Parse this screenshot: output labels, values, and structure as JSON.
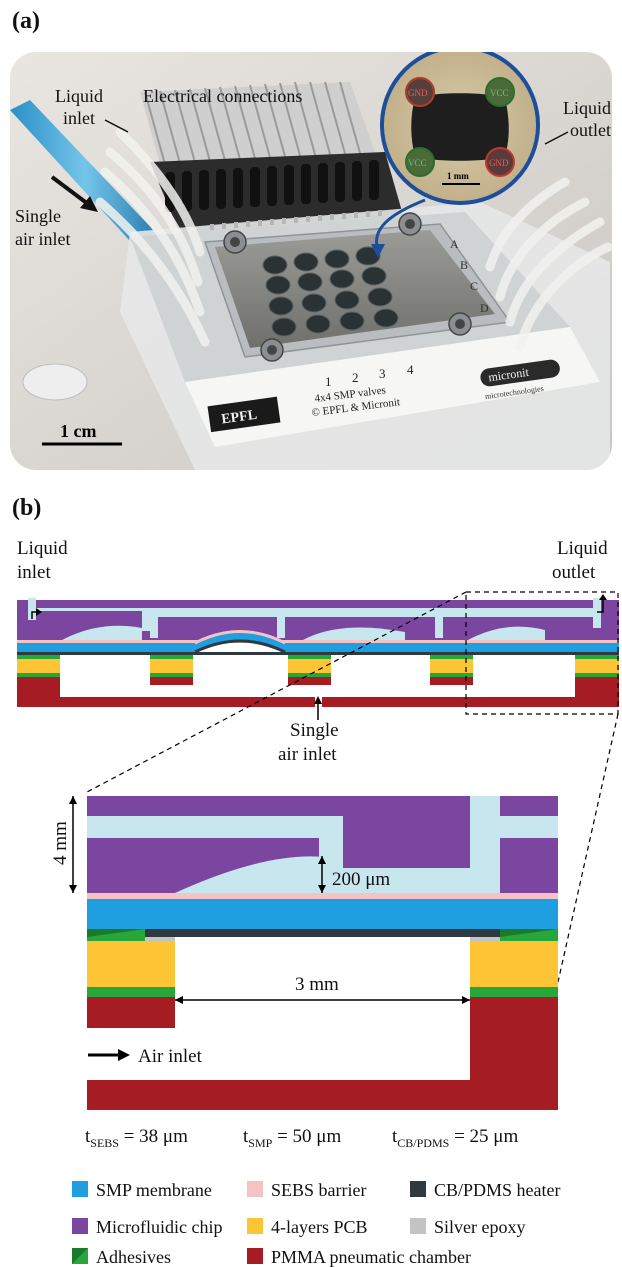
{
  "panel_a": {
    "label": "(a)",
    "annotations": {
      "liquid_inlet_1": "Liquid",
      "liquid_inlet_2": "inlet",
      "electrical": "Electrical connections",
      "liquid_outlet_1": "Liquid",
      "liquid_outlet_2": "outlet",
      "single_air_1": "Single",
      "single_air_2": "air inlet",
      "scale_bar": "1 cm",
      "inset_scale": "1 mm",
      "inset_pad_gnd": "GND",
      "inset_pad_vcc": "VCC",
      "row_letters": [
        "A",
        "B",
        "C",
        "D"
      ],
      "col_numbers": [
        "1",
        "2",
        "3",
        "4"
      ],
      "chip_line1": "4x4 SMP valves",
      "chip_line2": "© EPFL & Micronit",
      "epfl_logo": "EPFL",
      "micronit_logo": "micronit",
      "micronit_sub": "microtechnologies"
    }
  },
  "panel_b": {
    "label": "(b)",
    "liquid_inlet_1": "Liquid",
    "liquid_inlet_2": "inlet",
    "liquid_outlet_1": "Liquid",
    "liquid_outlet_2": "outlet",
    "single_air_1": "Single",
    "single_air_2": "air inlet",
    "dim_4mm": "4 mm",
    "dim_200um": "200 μm",
    "dim_3mm": "3 mm",
    "air_inlet": "Air inlet",
    "thickness": [
      {
        "t": "t",
        "sub": "SEBS",
        "rest": " = 38 μm"
      },
      {
        "t": "t",
        "sub": "SMP",
        "rest": " = 50 μm"
      },
      {
        "t": "t",
        "sub": "CB/PDMS",
        "rest": " = 25 μm"
      }
    ],
    "legend": [
      {
        "label": "SMP membrane",
        "color": "#1f9ee0"
      },
      {
        "label": "SEBS barrier",
        "color": "#f5c3c3"
      },
      {
        "label": "CB/PDMS heater",
        "color": "#2e3a3f"
      },
      {
        "label": "Microfluidic chip",
        "color": "#7b46a0"
      },
      {
        "label": "4-layers PCB",
        "color": "#fdc535"
      },
      {
        "label": "Silver epoxy",
        "color": "#c4c4c4"
      },
      {
        "label": "Adhesives",
        "color": "#27a63a"
      },
      {
        "label": "PMMA pneumatic chamber",
        "color": "#a51d23"
      }
    ],
    "colors": {
      "purple": "#7b46a0",
      "channel": "#c7e6ee",
      "pink": "#f5c3c3",
      "blue": "#1f9ee0",
      "black": "#2e3a3f",
      "green": "#27a63a",
      "green_dark": "#1a7a2a",
      "yellow": "#fdc535",
      "red": "#a51d23",
      "gray": "#c4c4c4"
    }
  }
}
